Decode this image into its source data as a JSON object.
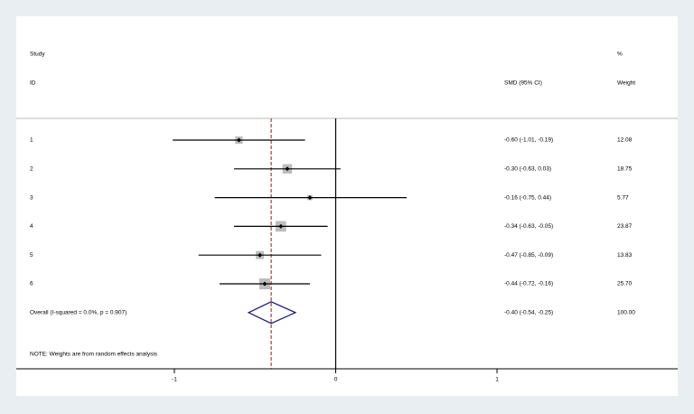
{
  "chart_data": {
    "type": "forest",
    "column_headers": {
      "study_top": "Study",
      "study": "ID",
      "effect": "SMD (95% CI)",
      "weight_top": "%",
      "weight": "Weight"
    },
    "categories": [
      "1",
      "2",
      "3",
      "4",
      "5",
      "6"
    ],
    "values": [
      -0.6,
      -0.3,
      -0.16,
      -0.34,
      -0.47,
      -0.44
    ],
    "lower": [
      -1.01,
      -0.63,
      -0.75,
      -0.63,
      -0.85,
      -0.72
    ],
    "upper": [
      -0.19,
      0.03,
      0.44,
      -0.05,
      -0.09,
      -0.16
    ],
    "value_labels": [
      "-0.60 (-1.01, -0.19)",
      "-0.30 (-0.63, 0.03)",
      "-0.16 (-0.75, 0.44)",
      "-0.34 (-0.63, -0.05)",
      "-0.47 (-0.85, -0.09)",
      "-0.44 (-0.72, -0.16)"
    ],
    "weights": [
      12.08,
      18.75,
      5.77,
      23.87,
      13.83,
      25.7
    ],
    "weight_labels": [
      "12.08",
      "18.75",
      "5.77",
      "23.87",
      "13.83",
      "25.70"
    ],
    "overall": {
      "label": "Overall  (I-squared = 0.0%, p = 0.907)",
      "value": -0.4,
      "lower": -0.54,
      "upper": -0.25,
      "value_label": "-0.40 (-0.54, -0.25)",
      "weight": 100,
      "weight_label": "100.00"
    },
    "note": "NOTE: Weights are from random effects analysis",
    "xlim": [
      -1.98,
      2.12
    ],
    "xticks": [
      -1,
      0,
      1
    ],
    "colors": {
      "box": "#bdbdbd",
      "ci": "#000000",
      "overall": "#1a1a7a",
      "overall_line": "#8b1a1a"
    }
  }
}
